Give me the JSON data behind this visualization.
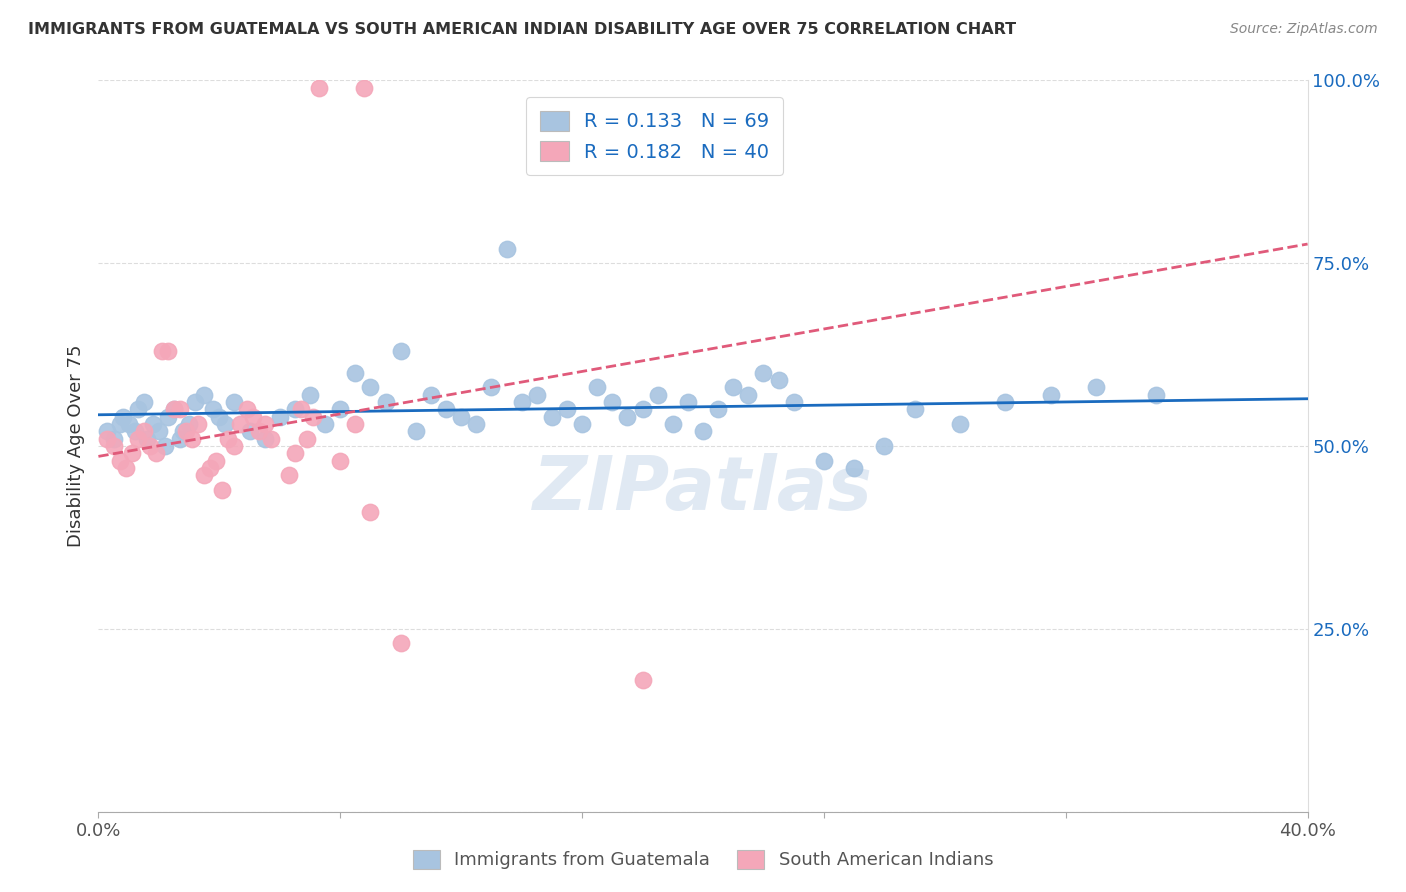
{
  "title": "IMMIGRANTS FROM GUATEMALA VS SOUTH AMERICAN INDIAN DISABILITY AGE OVER 75 CORRELATION CHART",
  "source": "Source: ZipAtlas.com",
  "ylabel": "Disability Age Over 75",
  "legend1_label": "Immigrants from Guatemala",
  "legend2_label": "South American Indians",
  "R1": 0.133,
  "N1": 69,
  "R2": 0.182,
  "N2": 40,
  "blue_color": "#a8c4e0",
  "pink_color": "#f4a7b9",
  "blue_line_color": "#1a6bbf",
  "pink_line_color": "#e05a7a",
  "watermark": "ZIPatlas",
  "blue_x": [
    0.3,
    0.5,
    0.7,
    0.8,
    1.0,
    1.2,
    1.3,
    1.5,
    1.6,
    1.8,
    2.0,
    2.2,
    2.3,
    2.5,
    2.7,
    2.8,
    3.0,
    3.2,
    3.5,
    3.8,
    4.0,
    4.2,
    4.5,
    5.0,
    5.5,
    6.0,
    6.5,
    7.0,
    7.5,
    8.0,
    8.5,
    9.0,
    9.5,
    10.0,
    10.5,
    11.0,
    11.5,
    12.0,
    12.5,
    13.0,
    13.5,
    14.0,
    14.5,
    15.0,
    15.5,
    16.0,
    16.5,
    17.0,
    17.5,
    18.0,
    18.5,
    19.0,
    19.5,
    20.0,
    20.5,
    21.0,
    21.5,
    22.0,
    22.5,
    23.0,
    24.0,
    25.0,
    26.0,
    27.0,
    28.5,
    30.0,
    31.5,
    33.0,
    35.0
  ],
  "blue_y": [
    52,
    51,
    53,
    54,
    53,
    52,
    55,
    56,
    51,
    53,
    52,
    50,
    54,
    55,
    51,
    52,
    53,
    56,
    57,
    55,
    54,
    53,
    56,
    52,
    51,
    54,
    55,
    57,
    53,
    55,
    60,
    58,
    56,
    63,
    52,
    57,
    55,
    54,
    53,
    58,
    77,
    56,
    57,
    54,
    55,
    53,
    58,
    56,
    54,
    55,
    57,
    53,
    56,
    52,
    55,
    58,
    57,
    60,
    59,
    56,
    48,
    47,
    50,
    55,
    53,
    56,
    57,
    58,
    57
  ],
  "pink_x": [
    0.3,
    0.5,
    0.7,
    0.9,
    1.1,
    1.3,
    1.5,
    1.7,
    1.9,
    2.1,
    2.3,
    2.5,
    2.7,
    2.9,
    3.1,
    3.3,
    3.5,
    3.7,
    3.9,
    4.1,
    4.3,
    4.5,
    4.7,
    4.9,
    5.1,
    5.3,
    5.5,
    5.7,
    6.3,
    6.5,
    6.7,
    6.9,
    7.1,
    7.3,
    8.0,
    8.5,
    8.8,
    9.0,
    10.0,
    18.0
  ],
  "pink_y": [
    51,
    50,
    48,
    47,
    49,
    51,
    52,
    50,
    49,
    63,
    63,
    55,
    55,
    52,
    51,
    53,
    46,
    47,
    48,
    44,
    51,
    50,
    53,
    55,
    54,
    52,
    53,
    51,
    46,
    49,
    55,
    51,
    54,
    99,
    48,
    53,
    99,
    41,
    23,
    18
  ]
}
